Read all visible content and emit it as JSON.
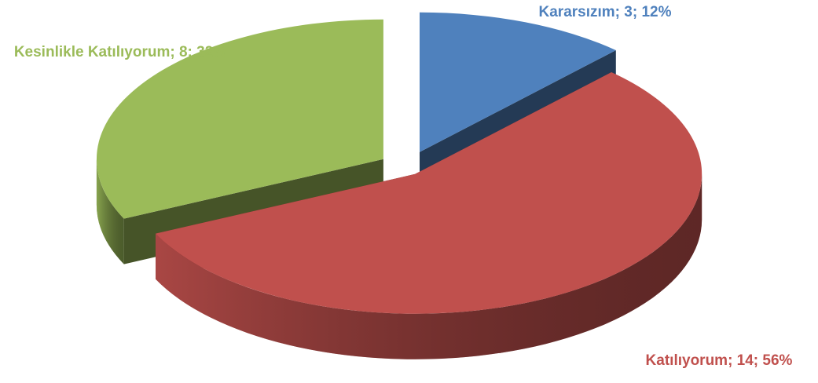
{
  "chart_data": {
    "type": "pie",
    "values": [
      3,
      14,
      8
    ],
    "value_labels": [
      "Kararsızım; 3; 12%",
      "Katılıyorum; 14; 56%",
      "Kesinlikle Katılıyorum; 8; 32%"
    ],
    "colors": [
      "#4f81bd",
      "#c0504d",
      "#9bbb59"
    ]
  }
}
